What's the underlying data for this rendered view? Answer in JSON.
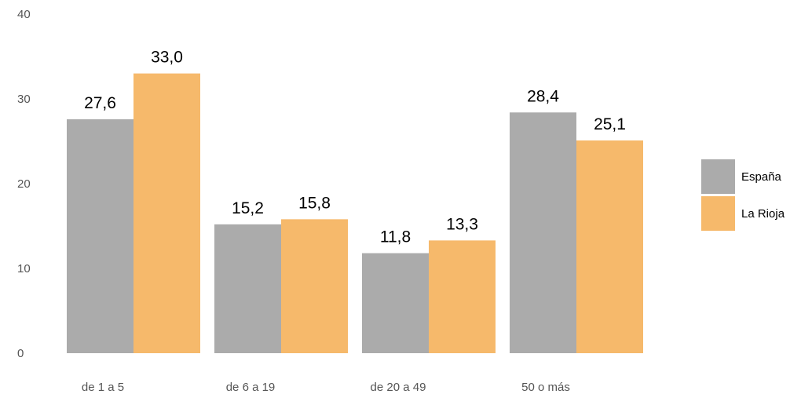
{
  "chart_data": {
    "type": "bar",
    "categories": [
      "de 1 a 5",
      "de 6 a 19",
      "de 20 a 49",
      "50 o más"
    ],
    "series": [
      {
        "name": "España",
        "values": [
          27.6,
          15.2,
          11.8,
          28.4
        ],
        "labels": [
          "27,6",
          "15,2",
          "11,8",
          "28,4"
        ],
        "color": "#ABABAB"
      },
      {
        "name": "La Rioja",
        "values": [
          33.0,
          15.8,
          13.3,
          25.1
        ],
        "labels": [
          "33,0",
          "15,8",
          "13,3",
          "25,1"
        ],
        "color": "#F6B96B"
      }
    ],
    "yticks": [
      0,
      10,
      20,
      30,
      40
    ],
    "ylim": [
      0,
      40
    ],
    "grid": false,
    "legend_position": "right",
    "title": "",
    "xlabel": "",
    "ylabel": ""
  }
}
